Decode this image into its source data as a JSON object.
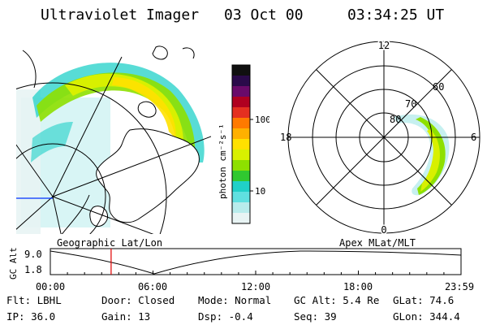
{
  "header": {
    "title": "Ultraviolet Imager",
    "date": "03 Oct 00",
    "time": "03:34:25 UT"
  },
  "colorbar": {
    "unit": "photon cm⁻²s⁻¹",
    "ticks": [
      "100",
      "10"
    ],
    "colors": [
      "#101010",
      "#2a0a4a",
      "#6a0a6a",
      "#b00020",
      "#e43020",
      "#ff7a00",
      "#ffb000",
      "#ffe100",
      "#d8f000",
      "#8ee000",
      "#30c830",
      "#20d0c8",
      "#60e0e0",
      "#b8ecec",
      "#e8f4f4"
    ]
  },
  "polar_plot": {
    "hour_labels": {
      "top": "12",
      "left": "18",
      "right": "6",
      "bottom": "0"
    },
    "lat_labels": [
      "80",
      "70",
      "60"
    ]
  },
  "captions": {
    "left": "Geographic Lat/Lon",
    "right": "Apex MLat/MLT"
  },
  "orbit_plot": {
    "axis_title": "GC Alt",
    "y_labels": [
      "9.0",
      "1.8"
    ],
    "x_labels": [
      "00:00",
      "06:00",
      "12:00",
      "18:00",
      "23:59"
    ],
    "current_time_fraction": 0.148
  },
  "info": {
    "filter": "Flt: LBHL",
    "ip": "IP: 36.0",
    "door": "Door: Closed",
    "gain": "Gain: 13",
    "mode": "Mode: Normal",
    "dsp": "Dsp:   -0.4",
    "gc_alt": "GC Alt: 5.4 Re",
    "seq": "Seq: 39",
    "glat": "GLat:  74.6",
    "glon": "GLon: 344.4"
  }
}
